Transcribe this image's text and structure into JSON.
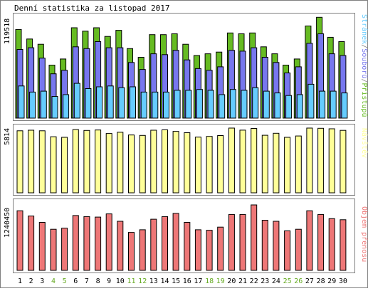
{
  "title": "Denní statistika za listopad 2017",
  "days": [
    "1",
    "2",
    "3",
    "4",
    "5",
    "6",
    "7",
    "8",
    "9",
    "10",
    "11",
    "12",
    "13",
    "14",
    "15",
    "16",
    "17",
    "18",
    "19",
    "20",
    "21",
    "22",
    "23",
    "24",
    "25",
    "26",
    "27",
    "28",
    "29",
    "30"
  ],
  "weekend_days": [
    "4",
    "5",
    "11",
    "12",
    "18",
    "19",
    "25",
    "26"
  ],
  "colors": {
    "frame": "#808080",
    "hits": "#66bb22",
    "files": "#7777ee",
    "pages": "#66ccff",
    "visits": "#ffff99",
    "kbytes": "#ee7777",
    "weekday_label": "#000000",
    "weekend_label": "#66aa22",
    "bar_edge": "#000000"
  },
  "chart_data": [
    {
      "type": "bar",
      "panel": "top",
      "ymax_label": "119518",
      "legend": [
        {
          "text": "Stránek",
          "color": "#66ccff"
        },
        {
          "text": "/",
          "color": "#808080"
        },
        {
          "text": "Souborů",
          "color": "#7777ee"
        },
        {
          "text": "/",
          "color": "#808080"
        },
        {
          "text": "Přístupů",
          "color": "#66bb22"
        }
      ],
      "ylim": [
        0,
        119518
      ],
      "categories": [
        "1",
        "2",
        "3",
        "4",
        "5",
        "6",
        "7",
        "8",
        "9",
        "10",
        "11",
        "12",
        "13",
        "14",
        "15",
        "16",
        "17",
        "18",
        "19",
        "20",
        "21",
        "22",
        "23",
        "24",
        "25",
        "26",
        "27",
        "28",
        "29",
        "30"
      ],
      "series": [
        {
          "name": "Přístupů",
          "values": [
            102000,
            91000,
            85000,
            61000,
            68000,
            104000,
            100000,
            104000,
            94000,
            101000,
            80000,
            70000,
            96000,
            96000,
            97000,
            85000,
            72000,
            74000,
            76000,
            98000,
            97000,
            98000,
            82000,
            74000,
            61000,
            68000,
            106000,
            116000,
            93000,
            88000
          ]
        },
        {
          "name": "Souborů",
          "values": [
            79000,
            81000,
            69000,
            51000,
            55000,
            82000,
            80000,
            88000,
            81000,
            81000,
            64000,
            56000,
            74000,
            73000,
            78000,
            67000,
            57000,
            55000,
            59000,
            78000,
            77000,
            81000,
            70000,
            64000,
            52000,
            59000,
            86000,
            97000,
            74000,
            72000
          ]
        },
        {
          "name": "Stránek",
          "values": [
            37000,
            30000,
            31000,
            25000,
            27000,
            40000,
            34000,
            36000,
            37000,
            35000,
            36000,
            30000,
            30000,
            30000,
            32000,
            32000,
            33000,
            32000,
            27000,
            33000,
            32000,
            35000,
            31000,
            29000,
            26000,
            27000,
            39000,
            31000,
            31000,
            29000
          ]
        }
      ]
    },
    {
      "type": "bar",
      "panel": "middle",
      "ymax_label": "5814",
      "legend": [
        {
          "text": "Návštěv",
          "color": "#ffff99"
        }
      ],
      "ylim": [
        0,
        5814
      ],
      "categories": [
        "1",
        "2",
        "3",
        "4",
        "5",
        "6",
        "7",
        "8",
        "9",
        "10",
        "11",
        "12",
        "13",
        "14",
        "15",
        "16",
        "17",
        "18",
        "19",
        "20",
        "21",
        "22",
        "23",
        "24",
        "25",
        "26",
        "27",
        "28",
        "29",
        "30"
      ],
      "series": [
        {
          "name": "Návštěv",
          "values": [
            5510,
            5560,
            5510,
            4980,
            4930,
            5620,
            5540,
            5580,
            5270,
            5380,
            5140,
            5100,
            5560,
            5590,
            5460,
            5340,
            4950,
            5010,
            5090,
            5750,
            5570,
            5720,
            5110,
            5290,
            4930,
            5050,
            5750,
            5730,
            5690,
            5550
          ]
        }
      ]
    },
    {
      "type": "bar",
      "panel": "bottom",
      "ymax_label": "1240450",
      "legend": [
        {
          "text": "Objem přenosu",
          "color": "#ee7777"
        }
      ],
      "ylim": [
        0,
        1240450
      ],
      "categories": [
        "1",
        "2",
        "3",
        "4",
        "5",
        "6",
        "7",
        "8",
        "9",
        "10",
        "11",
        "12",
        "13",
        "14",
        "15",
        "16",
        "17",
        "18",
        "19",
        "20",
        "21",
        "22",
        "23",
        "24",
        "25",
        "26",
        "27",
        "28",
        "29",
        "30"
      ],
      "series": [
        {
          "name": "Objem přenosu",
          "values": [
            1130000,
            1030000,
            910000,
            780000,
            800000,
            1040000,
            1020000,
            1010000,
            1070000,
            930000,
            720000,
            770000,
            970000,
            1020000,
            1080000,
            910000,
            770000,
            760000,
            820000,
            1060000,
            1060000,
            1240000,
            950000,
            930000,
            750000,
            780000,
            1130000,
            1060000,
            980000,
            960000
          ]
        }
      ]
    }
  ]
}
